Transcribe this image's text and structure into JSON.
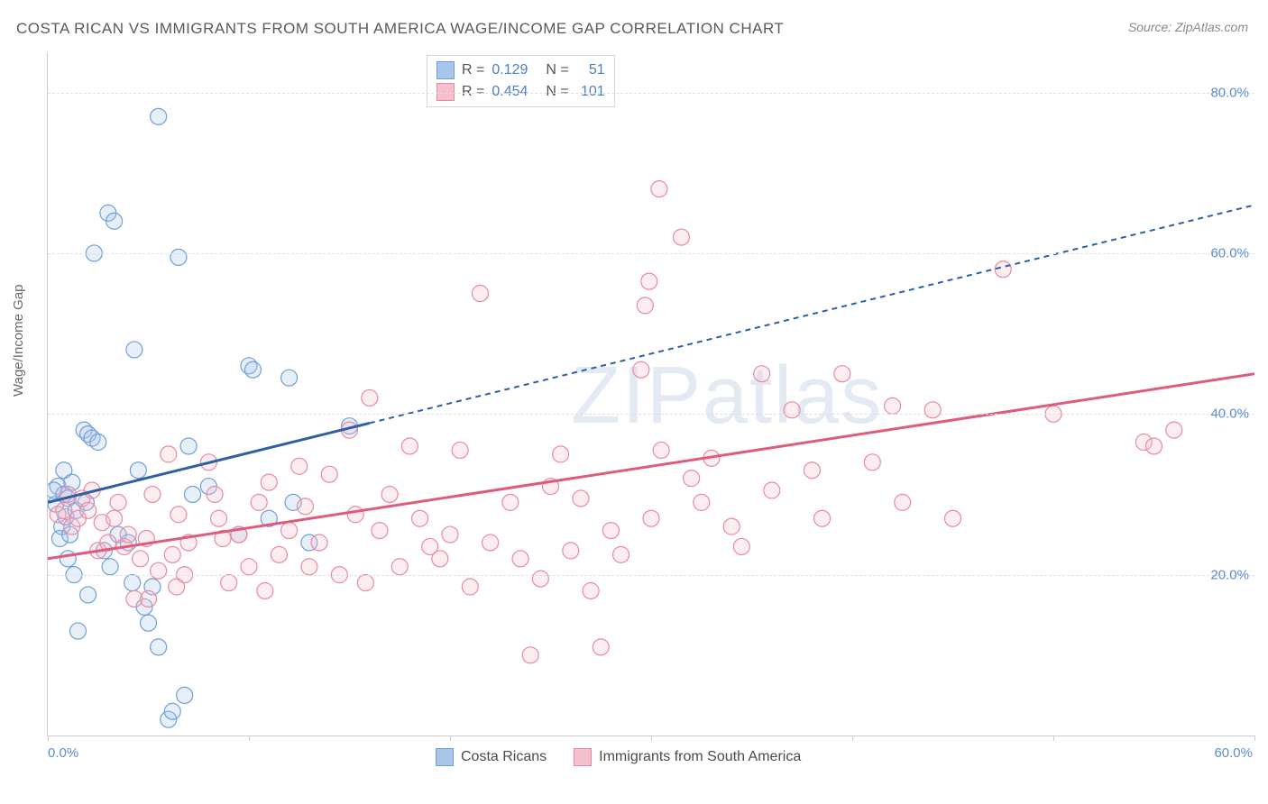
{
  "title": "COSTA RICAN VS IMMIGRANTS FROM SOUTH AMERICA WAGE/INCOME GAP CORRELATION CHART",
  "source_label": "Source: ZipAtlas.com",
  "y_axis_label": "Wage/Income Gap",
  "watermark": "ZIPatlas",
  "chart": {
    "type": "scatter",
    "background_color": "#ffffff",
    "grid_color": "#e0e0e0",
    "axis_color": "#cccccc",
    "tick_label_color": "#5b8bd4",
    "xlim": [
      0,
      60
    ],
    "ylim": [
      0,
      85
    ],
    "x_ticks": [
      0,
      10,
      20,
      30,
      40,
      50,
      60
    ],
    "x_tick_labels": {
      "0": "0.0%",
      "60": "60.0%"
    },
    "y_ticks": [
      20,
      40,
      60,
      80
    ],
    "y_tick_labels": {
      "20": "20.0%",
      "40": "40.0%",
      "60": "60.0%",
      "80": "80.0%"
    },
    "marker_radius": 9,
    "marker_stroke_width": 1.2,
    "marker_fill_opacity": 0.28,
    "series": [
      {
        "name": "Costa Ricans",
        "color_fill": "#a9c6ea",
        "color_stroke": "#6f9fd8",
        "legend_swatch_fill": "#a9c6ea",
        "legend_swatch_stroke": "#6f9fd8",
        "R": "0.129",
        "N": "51",
        "trend": {
          "x1": 0,
          "y1": 29,
          "x2": 60,
          "y2": 66,
          "solid_until_x": 16,
          "color": "#2e5fa3",
          "width": 3,
          "dash": "6,5"
        },
        "points": [
          [
            0.4,
            28.8
          ],
          [
            0.5,
            31.0
          ],
          [
            0.6,
            24.5
          ],
          [
            0.7,
            26.0
          ],
          [
            0.8,
            30.0
          ],
          [
            0.8,
            33.0
          ],
          [
            0.9,
            27.2
          ],
          [
            1.0,
            22.0
          ],
          [
            1.0,
            29.5
          ],
          [
            1.1,
            25.0
          ],
          [
            1.2,
            31.5
          ],
          [
            1.3,
            20.0
          ],
          [
            1.4,
            28.0
          ],
          [
            1.5,
            13.0
          ],
          [
            1.8,
            38.0
          ],
          [
            2.0,
            37.5
          ],
          [
            2.2,
            37.0
          ],
          [
            2.5,
            36.5
          ],
          [
            2.3,
            60.0
          ],
          [
            3.0,
            65.0
          ],
          [
            3.3,
            64.0
          ],
          [
            4.3,
            48.0
          ],
          [
            5.5,
            77.0
          ],
          [
            6.0,
            2.0
          ],
          [
            6.2,
            3.0
          ],
          [
            6.5,
            59.5
          ],
          [
            4.8,
            16.0
          ],
          [
            5.2,
            18.5
          ],
          [
            7.0,
            36.0
          ],
          [
            7.2,
            30.0
          ],
          [
            3.5,
            25.0
          ],
          [
            4.0,
            24.0
          ],
          [
            4.2,
            19.0
          ],
          [
            5.0,
            14.0
          ],
          [
            5.5,
            11.0
          ],
          [
            8.0,
            31.0
          ],
          [
            9.5,
            25.0
          ],
          [
            10.0,
            46.0
          ],
          [
            10.2,
            45.5
          ],
          [
            12.0,
            44.5
          ],
          [
            12.2,
            29.0
          ],
          [
            13.0,
            24.0
          ],
          [
            15.0,
            38.5
          ],
          [
            2.8,
            23.0
          ],
          [
            3.1,
            21.0
          ],
          [
            1.9,
            29.0
          ],
          [
            6.8,
            5.0
          ],
          [
            2.0,
            17.5
          ],
          [
            11.0,
            27.0
          ],
          [
            4.5,
            33.0
          ],
          [
            0.3,
            30.5
          ]
        ]
      },
      {
        "name": "Immigrants from South America",
        "color_fill": "#f4c0cd",
        "color_stroke": "#e88aa3",
        "legend_swatch_fill": "#f4c0cd",
        "legend_swatch_stroke": "#e88aa3",
        "R": "0.454",
        "N": "101",
        "trend": {
          "x1": 0,
          "y1": 22,
          "x2": 60,
          "y2": 45,
          "solid_until_x": 60,
          "color": "#e05a7c",
          "width": 3,
          "dash": null
        },
        "points": [
          [
            0.5,
            27.5
          ],
          [
            0.8,
            28.0
          ],
          [
            1.0,
            30.0
          ],
          [
            1.2,
            26.0
          ],
          [
            1.5,
            27.0
          ],
          [
            1.7,
            29.5
          ],
          [
            2.0,
            28.0
          ],
          [
            2.2,
            30.5
          ],
          [
            2.5,
            23.0
          ],
          [
            2.7,
            26.5
          ],
          [
            3.0,
            24.0
          ],
          [
            3.3,
            27.0
          ],
          [
            3.5,
            29.0
          ],
          [
            3.8,
            23.5
          ],
          [
            4.0,
            25.0
          ],
          [
            4.3,
            17.0
          ],
          [
            4.6,
            22.0
          ],
          [
            4.9,
            24.5
          ],
          [
            5.2,
            30.0
          ],
          [
            5.5,
            20.5
          ],
          [
            6.0,
            35.0
          ],
          [
            6.2,
            22.5
          ],
          [
            6.5,
            27.5
          ],
          [
            6.8,
            20.0
          ],
          [
            7.0,
            24.0
          ],
          [
            8.0,
            34.0
          ],
          [
            8.3,
            30.0
          ],
          [
            8.7,
            24.5
          ],
          [
            9.0,
            19.0
          ],
          [
            9.5,
            25.0
          ],
          [
            10.0,
            21.0
          ],
          [
            10.5,
            29.0
          ],
          [
            10.8,
            18.0
          ],
          [
            11.0,
            31.5
          ],
          [
            11.5,
            22.5
          ],
          [
            12.0,
            25.5
          ],
          [
            12.5,
            33.5
          ],
          [
            13.0,
            21.0
          ],
          [
            13.5,
            24.0
          ],
          [
            14.0,
            32.5
          ],
          [
            14.5,
            20.0
          ],
          [
            15.0,
            38.0
          ],
          [
            15.3,
            27.5
          ],
          [
            15.8,
            19.0
          ],
          [
            16.0,
            42.0
          ],
          [
            16.5,
            25.5
          ],
          [
            17.0,
            30.0
          ],
          [
            17.5,
            21.0
          ],
          [
            18.0,
            36.0
          ],
          [
            18.5,
            27.0
          ],
          [
            19.0,
            23.5
          ],
          [
            19.5,
            22.0
          ],
          [
            20.0,
            25.0
          ],
          [
            20.5,
            35.5
          ],
          [
            21.0,
            18.5
          ],
          [
            21.5,
            55.0
          ],
          [
            22.0,
            24.0
          ],
          [
            23.0,
            29.0
          ],
          [
            23.5,
            22.0
          ],
          [
            24.0,
            10.0
          ],
          [
            24.5,
            19.5
          ],
          [
            25.0,
            31.0
          ],
          [
            25.5,
            35.0
          ],
          [
            26.0,
            23.0
          ],
          [
            26.5,
            29.5
          ],
          [
            27.0,
            18.0
          ],
          [
            27.5,
            11.0
          ],
          [
            28.0,
            25.5
          ],
          [
            28.5,
            22.5
          ],
          [
            29.5,
            45.5
          ],
          [
            29.7,
            53.5
          ],
          [
            29.9,
            56.5
          ],
          [
            30.0,
            27.0
          ],
          [
            30.4,
            68.0
          ],
          [
            30.5,
            35.5
          ],
          [
            31.5,
            62.0
          ],
          [
            32.0,
            32.0
          ],
          [
            32.5,
            29.0
          ],
          [
            33.0,
            34.5
          ],
          [
            34.0,
            26.0
          ],
          [
            34.5,
            23.5
          ],
          [
            35.5,
            45.0
          ],
          [
            36.0,
            30.5
          ],
          [
            37.0,
            40.5
          ],
          [
            38.0,
            33.0
          ],
          [
            38.5,
            27.0
          ],
          [
            39.5,
            45.0
          ],
          [
            41.0,
            34.0
          ],
          [
            42.0,
            41.0
          ],
          [
            42.5,
            29.0
          ],
          [
            44.0,
            40.5
          ],
          [
            45.0,
            27.0
          ],
          [
            47.5,
            58.0
          ],
          [
            50.0,
            40.0
          ],
          [
            54.5,
            36.5
          ],
          [
            55.0,
            36.0
          ],
          [
            56.0,
            38.0
          ],
          [
            8.5,
            27.0
          ],
          [
            12.8,
            28.5
          ],
          [
            6.4,
            18.5
          ],
          [
            5.0,
            17.0
          ]
        ]
      }
    ]
  },
  "legend_top_labels": {
    "R": "R =",
    "N": "N ="
  },
  "legend_bottom": [
    "Costa Ricans",
    "Immigrants from South America"
  ]
}
